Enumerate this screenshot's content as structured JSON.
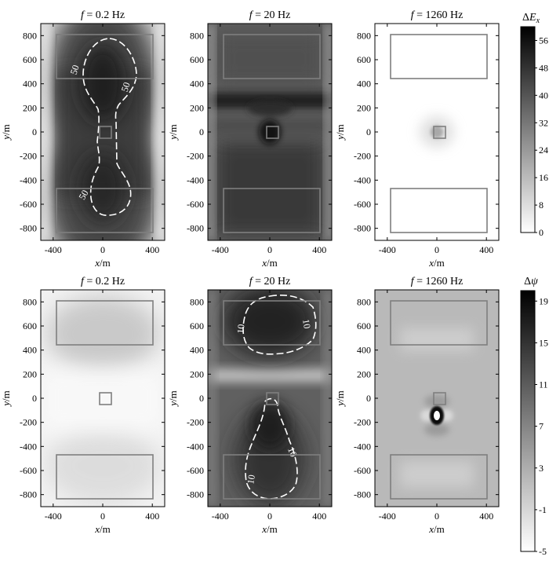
{
  "figure": {
    "panels": [
      {
        "title_var": "f",
        "title_value": " = 0.2 Hz",
        "shade": "dEx_f02"
      },
      {
        "title_var": "f",
        "title_value": " = 20 Hz",
        "shade": "dEx_f20"
      },
      {
        "title_var": "f",
        "title_value": " = 1260 Hz",
        "shade": "dEx_f1260"
      },
      {
        "title_var": "f",
        "title_value": " = 0.2 Hz",
        "shade": "dpsi_f02"
      },
      {
        "title_var": "f",
        "title_value": " = 20 Hz",
        "shade": "dpsi_f20"
      },
      {
        "title_var": "f",
        "title_value": " = 1260 Hz",
        "shade": "dpsi_f1260"
      }
    ],
    "xlabel": "x/m",
    "ylabel": "y/m",
    "colorbars": [
      {
        "label_prefix": "Δ",
        "label_var": "E",
        "label_sub": "x",
        "ticks": [
          "56",
          "48",
          "40",
          "32",
          "24",
          "16",
          "8",
          "0"
        ],
        "range": [
          0,
          60
        ]
      },
      {
        "label_prefix": "Δ",
        "label_var": "ψ",
        "label_sub": "",
        "ticks": [
          "19",
          "15",
          "11",
          "7",
          "3",
          "-1",
          "-5"
        ],
        "range": [
          -5,
          20
        ]
      }
    ],
    "colors": {
      "frame": "#000000",
      "bodies": "#7f7f7f",
      "contour": "#ffffff"
    }
  },
  "chart_data": [
    {
      "type": "heatmap",
      "panel": "top-left",
      "quantity": "ΔEx",
      "frequency_hz": 0.2,
      "title": "f = 0.2 Hz",
      "xlabel": "x/m",
      "ylabel": "y/m",
      "xlim": [
        -500,
        500
      ],
      "ylim": [
        -900,
        900
      ],
      "xticks": [
        -400,
        0,
        400
      ],
      "yticks": [
        800,
        600,
        400,
        200,
        0,
        -200,
        -400,
        -600,
        -800
      ],
      "contour_labels": [
        "50",
        "50",
        "50"
      ],
      "bodies": [
        {
          "x": [
            -380,
            380
          ],
          "y": [
            250,
            760
          ]
        },
        {
          "x": [
            -380,
            380
          ],
          "y": [
            -760,
            -250
          ]
        },
        {
          "x": [
            -30,
            30
          ],
          "y": [
            -30,
            30
          ]
        }
      ]
    },
    {
      "type": "heatmap",
      "panel": "top-middle",
      "quantity": "ΔEx",
      "frequency_hz": 20,
      "title": "f = 20 Hz",
      "xlabel": "x/m",
      "ylabel": "y/m",
      "xlim": [
        -500,
        500
      ],
      "ylim": [
        -900,
        900
      ],
      "xticks": [
        -400,
        0,
        400
      ],
      "yticks": [
        800,
        600,
        400,
        200,
        0,
        -200,
        -400,
        -600,
        -800
      ],
      "bodies": [
        {
          "x": [
            -380,
            380
          ],
          "y": [
            250,
            760
          ]
        },
        {
          "x": [
            -380,
            380
          ],
          "y": [
            -760,
            -250
          ]
        },
        {
          "x": [
            -30,
            30
          ],
          "y": [
            -30,
            30
          ]
        }
      ]
    },
    {
      "type": "heatmap",
      "panel": "top-right",
      "quantity": "ΔEx",
      "frequency_hz": 1260,
      "title": "f = 1260 Hz",
      "xlabel": "x/m",
      "ylabel": "y/m",
      "xlim": [
        -500,
        500
      ],
      "ylim": [
        -900,
        900
      ],
      "xticks": [
        -400,
        0,
        400
      ],
      "yticks": [
        800,
        600,
        400,
        200,
        0,
        -200,
        -400,
        -600,
        -800
      ],
      "bodies": [
        {
          "x": [
            -380,
            380
          ],
          "y": [
            250,
            760
          ]
        },
        {
          "x": [
            -380,
            380
          ],
          "y": [
            -760,
            -250
          ]
        },
        {
          "x": [
            -30,
            30
          ],
          "y": [
            -30,
            30
          ]
        }
      ]
    },
    {
      "type": "heatmap",
      "panel": "bottom-left",
      "quantity": "Δψ",
      "frequency_hz": 0.2,
      "title": "f = 0.2 Hz",
      "xlabel": "x/m",
      "ylabel": "y/m",
      "xlim": [
        -500,
        500
      ],
      "ylim": [
        -900,
        900
      ],
      "xticks": [
        -400,
        0,
        400
      ],
      "yticks": [
        800,
        600,
        400,
        200,
        0,
        -200,
        -400,
        -600,
        -800
      ],
      "bodies": [
        {
          "x": [
            -380,
            380
          ],
          "y": [
            250,
            760
          ]
        },
        {
          "x": [
            -380,
            380
          ],
          "y": [
            -760,
            -250
          ]
        },
        {
          "x": [
            -30,
            30
          ],
          "y": [
            -30,
            30
          ]
        }
      ]
    },
    {
      "type": "heatmap",
      "panel": "bottom-middle",
      "quantity": "Δψ",
      "frequency_hz": 20,
      "title": "f = 20 Hz",
      "xlabel": "x/m",
      "ylabel": "y/m",
      "xlim": [
        -500,
        500
      ],
      "ylim": [
        -900,
        900
      ],
      "xticks": [
        -400,
        0,
        400
      ],
      "yticks": [
        800,
        600,
        400,
        200,
        0,
        -200,
        -400,
        -600,
        -800
      ],
      "contour_labels": [
        "10",
        "10",
        "10",
        "10"
      ],
      "bodies": [
        {
          "x": [
            -380,
            380
          ],
          "y": [
            250,
            760
          ]
        },
        {
          "x": [
            -380,
            380
          ],
          "y": [
            -760,
            -250
          ]
        },
        {
          "x": [
            -30,
            30
          ],
          "y": [
            -30,
            30
          ]
        }
      ]
    },
    {
      "type": "heatmap",
      "panel": "bottom-right",
      "quantity": "Δψ",
      "frequency_hz": 1260,
      "title": "f = 1260 Hz",
      "xlabel": "x/m",
      "ylabel": "y/m",
      "xlim": [
        -500,
        500
      ],
      "ylim": [
        -900,
        900
      ],
      "xticks": [
        -400,
        0,
        400
      ],
      "yticks": [
        800,
        600,
        400,
        200,
        0,
        -200,
        -400,
        -600,
        -800
      ],
      "bodies": [
        {
          "x": [
            -380,
            380
          ],
          "y": [
            250,
            760
          ]
        },
        {
          "x": [
            -380,
            380
          ],
          "y": [
            -760,
            -250
          ]
        },
        {
          "x": [
            -30,
            30
          ],
          "y": [
            -30,
            30
          ]
        }
      ]
    }
  ]
}
